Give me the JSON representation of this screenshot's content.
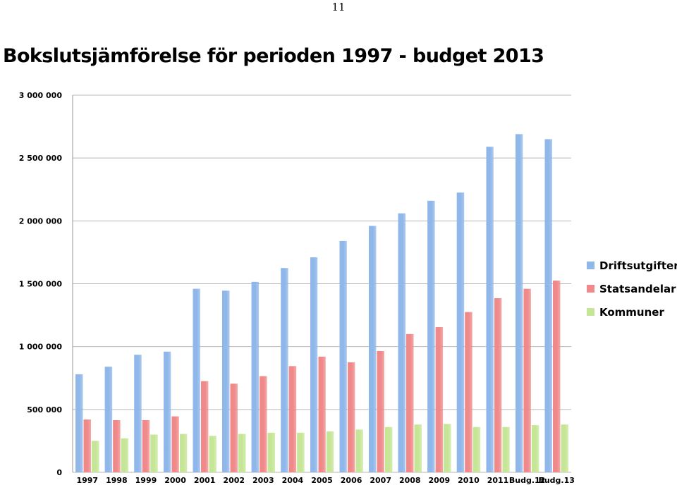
{
  "page_number": "11",
  "chart_data": {
    "type": "bar",
    "title": "Bokslutsjämförelse för perioden 1997 - budget 2013",
    "xlabel": "",
    "ylabel": "",
    "ylim": [
      0,
      3000000
    ],
    "yticks": [
      0,
      500000,
      1000000,
      1500000,
      2000000,
      2500000,
      3000000
    ],
    "ytick_labels": [
      "0",
      "500 000",
      "1 000 000",
      "1 500 000",
      "2 000 000",
      "2 500 000",
      "3 000 000"
    ],
    "grid": true,
    "legend_position": "right",
    "categories": [
      "1997",
      "1998",
      "1999",
      "2000",
      "2001",
      "2002",
      "2003",
      "2004",
      "2005",
      "2006",
      "2007",
      "2008",
      "2009",
      "2010",
      "2011",
      "Budg.12",
      "Budg.13"
    ],
    "series": [
      {
        "name": "Driftsutgifter",
        "color": "#8fb7ea",
        "values": [
          780000,
          840000,
          935000,
          960000,
          1460000,
          1445000,
          1515000,
          1625000,
          1710000,
          1840000,
          1960000,
          2060000,
          2160000,
          2225000,
          2590000,
          2690000,
          2650000
        ]
      },
      {
        "name": "Statsandelar",
        "color": "#f08a8a",
        "values": [
          420000,
          415000,
          415000,
          445000,
          725000,
          705000,
          765000,
          845000,
          920000,
          875000,
          965000,
          1100000,
          1155000,
          1275000,
          1385000,
          1460000,
          1525000
        ]
      },
      {
        "name": "Kommuner",
        "color": "#c6e697",
        "values": [
          250000,
          270000,
          300000,
          305000,
          290000,
          305000,
          315000,
          315000,
          325000,
          340000,
          360000,
          380000,
          385000,
          360000,
          360000,
          375000,
          380000
        ]
      }
    ]
  }
}
